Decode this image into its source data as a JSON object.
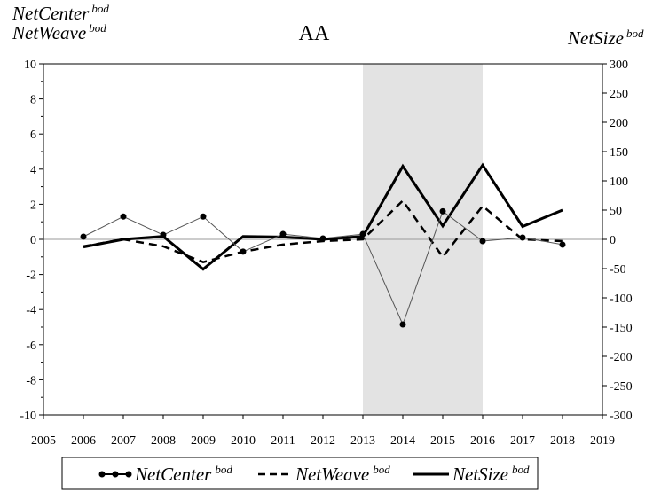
{
  "chart_data": {
    "type": "line",
    "title": "AA",
    "y_left_label": {
      "main": "NetCenter",
      "sup": "bod",
      "main2": "NetWeave",
      "sup2": "bod"
    },
    "y_right_label": {
      "main": "NetSize",
      "sup": "bod"
    },
    "xlim": [
      2005,
      2019
    ],
    "ylim_left": [
      -10,
      10
    ],
    "ylim_right": [
      -300,
      300
    ],
    "x_ticks": [
      2005,
      2006,
      2007,
      2008,
      2009,
      2010,
      2011,
      2012,
      2013,
      2014,
      2015,
      2016,
      2017,
      2018,
      2019
    ],
    "y_left_ticks": [
      -10,
      -8,
      -6,
      -4,
      -2,
      0,
      2,
      4,
      6,
      8,
      10
    ],
    "y_right_ticks": [
      -300,
      -250,
      -200,
      -150,
      -100,
      -50,
      0,
      50,
      100,
      150,
      200,
      250,
      300
    ],
    "shaded_region": [
      2013,
      2016
    ],
    "reference_line_y": 0,
    "grid": false,
    "legend_position": "bottom",
    "series": [
      {
        "name": "NetCenter",
        "name_sup": "bod",
        "axis": "left",
        "style": "line-markers",
        "x": [
          2006,
          2007,
          2008,
          2009,
          2010,
          2011,
          2012,
          2013,
          2014,
          2015,
          2016,
          2017,
          2018
        ],
        "y": [
          0.15,
          1.3,
          0.25,
          1.3,
          -0.7,
          0.3,
          0.05,
          0.3,
          -4.85,
          1.6,
          -0.1,
          0.1,
          -0.3
        ]
      },
      {
        "name": "NetWeave",
        "name_sup": "bod",
        "axis": "left",
        "style": "dashed",
        "x": [
          2006,
          2007,
          2008,
          2009,
          2010,
          2011,
          2012,
          2013,
          2014,
          2015,
          2016,
          2017,
          2018
        ],
        "y": [
          -0.4,
          0.0,
          -0.4,
          -1.3,
          -0.7,
          -0.3,
          -0.1,
          0.0,
          2.2,
          -1.0,
          1.9,
          0.0,
          -0.1
        ]
      },
      {
        "name": "NetSize",
        "name_sup": "bod",
        "axis": "right",
        "style": "solid",
        "x": [
          2006,
          2007,
          2008,
          2009,
          2010,
          2011,
          2012,
          2013,
          2014,
          2015,
          2016,
          2017,
          2018
        ],
        "y": [
          -13,
          0,
          5,
          -51,
          5,
          4,
          0,
          5,
          125,
          23,
          127,
          22,
          50
        ]
      }
    ]
  }
}
